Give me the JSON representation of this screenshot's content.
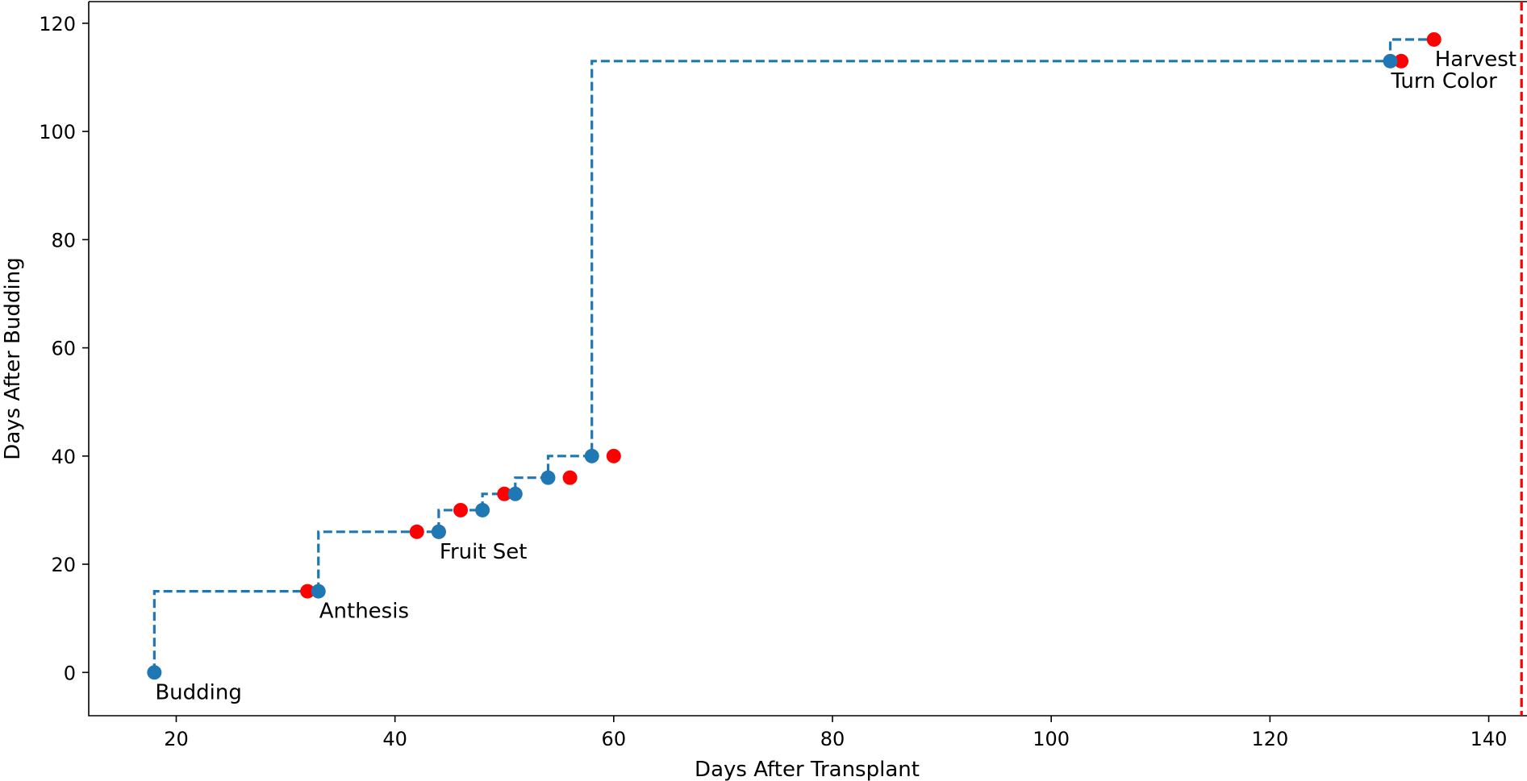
{
  "chart_data": {
    "type": "scatter",
    "title": "",
    "xlabel": "Days After Transplant",
    "ylabel": "Days After Budding",
    "xlim": [
      12,
      143.5
    ],
    "ylim": [
      -8,
      124
    ],
    "xticks": [
      20,
      40,
      60,
      80,
      100,
      120,
      140
    ],
    "yticks": [
      0,
      20,
      40,
      60,
      80,
      100,
      120
    ],
    "colors": {
      "blue": "#1f77b4",
      "red": "#ff0000"
    },
    "series": [
      {
        "style": "step-dashed",
        "color": "#1f77b4",
        "x": [
          18,
          33,
          44,
          48,
          51,
          54,
          58,
          131,
          135
        ],
        "y": [
          0,
          15,
          26,
          30,
          33,
          36,
          40,
          113,
          117
        ]
      },
      {
        "style": "markers",
        "color": "#1f77b4",
        "x": [
          18,
          33,
          44,
          48,
          51,
          54,
          58,
          131
        ],
        "y": [
          0,
          15,
          26,
          30,
          33,
          36,
          40,
          113
        ]
      },
      {
        "style": "markers",
        "color": "#ff0000",
        "x": [
          32,
          42,
          44,
          46,
          50,
          56,
          60,
          132,
          135
        ],
        "y": [
          15,
          26,
          26,
          30,
          33,
          36,
          40,
          113,
          117
        ]
      }
    ],
    "vline": {
      "x": 143,
      "color": "#ff0000",
      "style": "dashed"
    },
    "annotations": [
      {
        "text": "Budding",
        "x": 18,
        "y": 0
      },
      {
        "text": "Anthesis",
        "x": 33,
        "y": 15
      },
      {
        "text": "Fruit Set",
        "x": 44,
        "y": 26
      },
      {
        "text": "Turn Color",
        "x": 131,
        "y": 113
      },
      {
        "text": "Harvest",
        "x": 135,
        "y": 117
      }
    ],
    "grid": false,
    "legend": "none"
  }
}
